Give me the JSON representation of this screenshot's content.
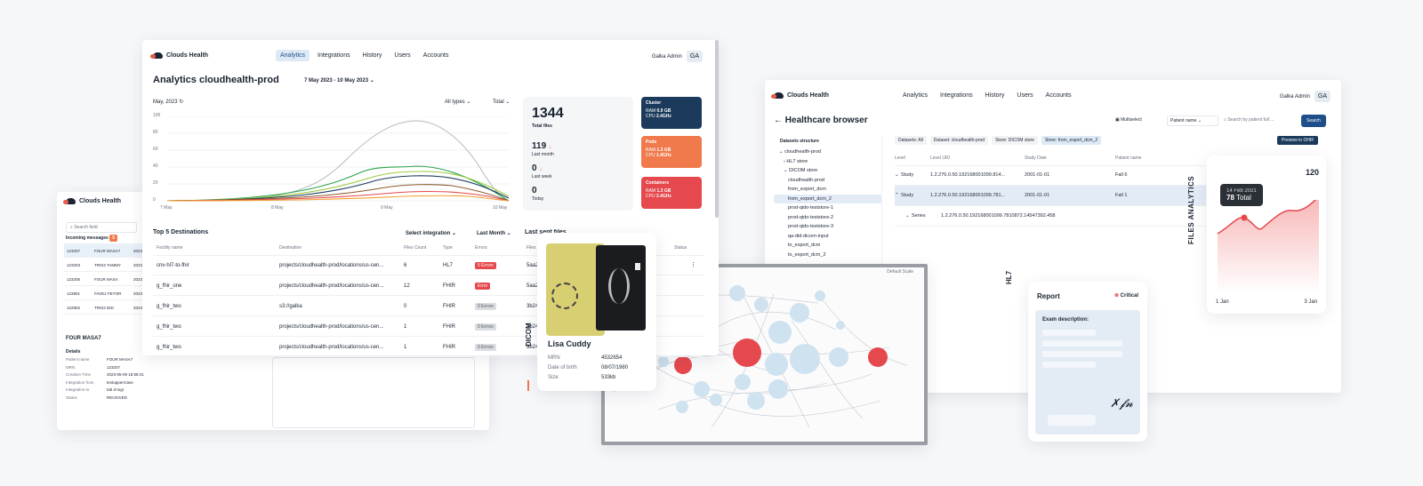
{
  "brand": "Clouds Health",
  "nav": [
    "Analytics",
    "Integrations",
    "History",
    "Users",
    "Accounts"
  ],
  "user": {
    "name": "Galka Admin",
    "initials": "GA"
  },
  "analytics": {
    "title": "Analytics cloudhealth-prod",
    "date_range": "7 May 2023 - 10 May 2023",
    "month": "May, 2023",
    "filter_types": "All types",
    "filter_total": "Total",
    "y_ticks": [
      "100",
      "80",
      "60",
      "40",
      "20",
      "0"
    ],
    "x_ticks": [
      "7 May",
      "8 May",
      "9 May",
      "10 May"
    ],
    "total_files": "1344",
    "total_files_label": "Total files",
    "last_month": "119",
    "last_month_label": "Last month",
    "last_week": "0",
    "last_week_label": "Last week",
    "today": "0",
    "today_label": "Today",
    "cluster": {
      "name": "Cluster",
      "ram_label": "RAM",
      "ram": "0.9 GB",
      "cpu_label": "CPU",
      "cpu": "2.4GHz"
    },
    "pods": {
      "name": "Pods",
      "ram_label": "RAM",
      "ram": "1.3 GB",
      "cpu_label": "CPU",
      "cpu": "1.4GHz"
    },
    "containers": {
      "name": "Containers",
      "ram_label": "RAM",
      "ram": "1.3 GB",
      "cpu_label": "CPU",
      "cpu": "2.4GHz"
    },
    "top5_title": "Top 5 Destinations",
    "select_integration": "Select integration",
    "last_month_filter": "Last Month",
    "last_sent_title": "Last sent files",
    "columns": [
      "Facility name",
      "Destination",
      "Files Count",
      "Type",
      "Errors",
      "Files",
      "Status"
    ],
    "rows": [
      {
        "facility": "cnv-hl7-to-fhir",
        "destination": "projects/cloudhealth-prod/locations/us-cen...",
        "count": "6",
        "type": "HL7",
        "errors": "5 Errors",
        "file": "5aa2"
      },
      {
        "facility": "g_fhir_one",
        "destination": "projects/cloudhealth-prod/locations/us-cen...",
        "count": "12",
        "type": "FHIR",
        "errors": "Error",
        "file": "5aa2"
      },
      {
        "facility": "g_fhir_two",
        "destination": "s3://galka",
        "count": "0",
        "type": "FHIR",
        "errors": "0 Errors",
        "file": "3b24"
      },
      {
        "facility": "g_fhir_two",
        "destination": "projects/cloudhealth-prod/locations/us-cen...",
        "count": "1",
        "type": "FHIR",
        "errors": "0 Errors",
        "file": "3b24"
      },
      {
        "facility": "g_fhir_two",
        "destination": "projects/cloudhealth-prod/locations/us-cen...",
        "count": "1",
        "type": "FHIR",
        "errors": "0 Errors",
        "file": "3b24"
      }
    ]
  },
  "left_panel": {
    "search_placeholder": "Search field",
    "incoming_label": "Incoming messages",
    "incoming_count": "5",
    "messages": [
      {
        "id": "123207",
        "name": "FOUR MASA7",
        "sub": "2023"
      },
      {
        "id": "123203",
        "name": "TRIS3 TAMMY",
        "sub": "2023"
      },
      {
        "id": "123205",
        "name": "FOUR MASA",
        "sub": "2023"
      },
      {
        "id": "123901",
        "name": "FAVE1 FEYOR",
        "sub": "2023"
      },
      {
        "id": "122902",
        "name": "TRIS2 DID",
        "sub": "2023"
      }
    ],
    "selected_title": "FOUR MASA7",
    "details_label": "Details",
    "details": [
      {
        "k": "Patient name",
        "v": "FOUR MASA7"
      },
      {
        "k": "MRN",
        "v": "123207"
      },
      {
        "k": "Creation Time",
        "v": "2023-05-09 16:58:41"
      },
      {
        "k": "Integration from",
        "v": "testupperrcase"
      },
      {
        "k": "Integration to",
        "v": "tab d-togr"
      },
      {
        "k": "Status",
        "v": "RECEIVED"
      }
    ]
  },
  "patient": {
    "name": "Lisa Cuddy",
    "mrn_label": "MRN",
    "mrn": "4532654",
    "dob_label": "Date of birth",
    "dob": "08/07/1980",
    "size_label": "Size",
    "size": "533kb",
    "side": "DICOM"
  },
  "healthcare": {
    "title": "Healthcare browser",
    "multiselect": "Multiselect",
    "patient_select": "Patient name",
    "search_placeholder": "Search by patient full ...",
    "search": "Search",
    "preview": "Preview in OHIF",
    "datasets_title": "Datasets structure",
    "tree": [
      "cloudhealth-prod",
      "HL7 store",
      "DICOM store",
      "cloudhealth-prod",
      "from_export_dcm",
      "from_export_dcm_2",
      "prod-qido-teststore-1",
      "prod-qido-teststore-2",
      "prod-qido-teststore-3",
      "qa-did-dicom-input",
      "to_export_dcm",
      "to_export_dcm_2"
    ],
    "crumbs": [
      "Datasets: All",
      "Dataset: cloudhealth-prod",
      "Store: DICOM store",
      "Store: from_export_dcm_2"
    ],
    "columns": [
      "Level",
      "Level UID",
      "Study Date",
      "Patient name"
    ],
    "rows": [
      {
        "level": "Study",
        "uid": "1.2.276.0.50.192168001099.814...",
        "date": "2001-01-01",
        "patient": "Fall 6"
      },
      {
        "level": "Study",
        "uid": "1.2.276.0.50.192168001099.781...",
        "date": "2001-01-01",
        "patient": "Fall 1"
      },
      {
        "level": "Series",
        "uid": "1.2.276.0.50.192168001099.7810872.14547392.458",
        "date": "",
        "patient": ""
      }
    ],
    "side": "HL7"
  },
  "files_analytics": {
    "label": "FILES ANALYTICS",
    "max": "120",
    "tooltip_date": "14 Feb 2021",
    "tooltip_value": "78",
    "tooltip_suffix": "Total",
    "x_start": "1 Jan",
    "x_end": "3 Jan"
  },
  "report": {
    "title": "Report",
    "critical": "Critical",
    "exam": "Exam description:"
  },
  "graph": {
    "details": "Default Scale"
  },
  "colors": {
    "navy": "#1b3a5c",
    "orange": "#f07a4c",
    "red": "#e5484d",
    "blue": "#1e4f8a"
  }
}
